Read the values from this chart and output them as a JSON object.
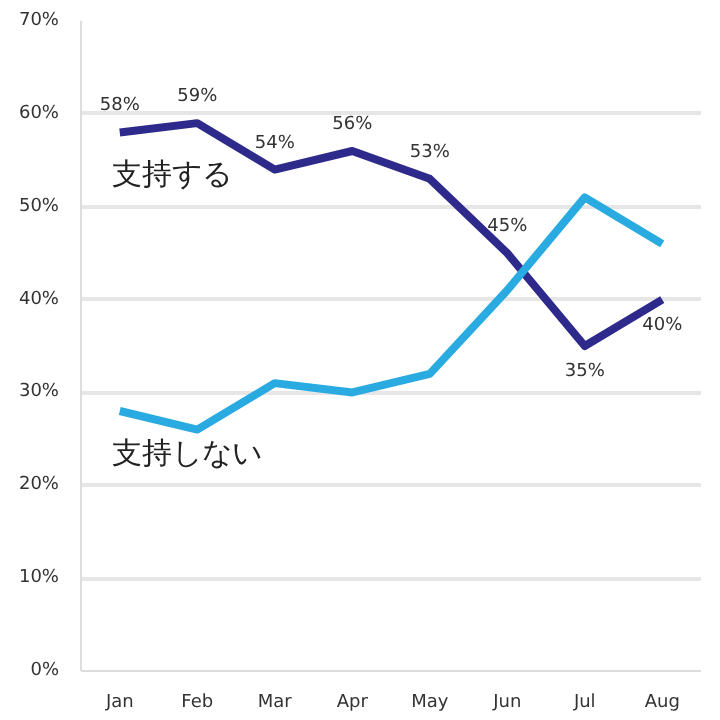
{
  "chart_data": {
    "type": "line",
    "categories": [
      "Jan",
      "Feb",
      "Mar",
      "Apr",
      "May",
      "Jun",
      "Jul",
      "Aug"
    ],
    "series": [
      {
        "name": "支持する",
        "color": "#2e2a8c",
        "values": [
          58,
          59,
          54,
          56,
          53,
          45,
          35,
          40
        ],
        "value_labels": [
          "58%",
          "59%",
          "54%",
          "56%",
          "53%",
          "45%",
          "35%",
          "40%"
        ]
      },
      {
        "name": "支持しない",
        "color": "#29abe2",
        "values": [
          28,
          26,
          31,
          30,
          32,
          41,
          51,
          46
        ]
      }
    ],
    "ylim": [
      0,
      70
    ],
    "yticks": [
      {
        "value": 0,
        "label": "0%"
      },
      {
        "value": 10,
        "label": "10%"
      },
      {
        "value": 20,
        "label": "20%"
      },
      {
        "value": 30,
        "label": "30%"
      },
      {
        "value": 40,
        "label": "40%"
      },
      {
        "value": 50,
        "label": "50%"
      },
      {
        "value": 60,
        "label": "60%"
      },
      {
        "value": 70,
        "label": "70%"
      }
    ],
    "grid": "y",
    "marker": "none",
    "line_style": "solid"
  }
}
